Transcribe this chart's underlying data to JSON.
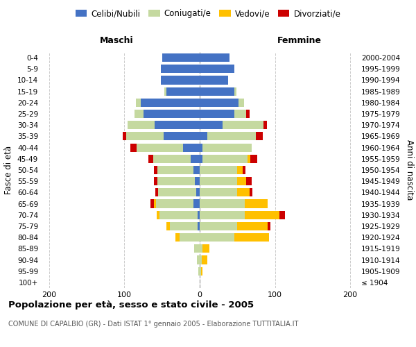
{
  "age_groups": [
    "100+",
    "95-99",
    "90-94",
    "85-89",
    "80-84",
    "75-79",
    "70-74",
    "65-69",
    "60-64",
    "55-59",
    "50-54",
    "45-49",
    "40-44",
    "35-39",
    "30-34",
    "25-29",
    "20-24",
    "15-19",
    "10-14",
    "5-9",
    "0-4"
  ],
  "birth_years": [
    "≤ 1904",
    "1905-1909",
    "1910-1914",
    "1915-1919",
    "1920-1924",
    "1925-1929",
    "1930-1934",
    "1935-1939",
    "1940-1944",
    "1945-1949",
    "1950-1954",
    "1955-1959",
    "1960-1964",
    "1965-1969",
    "1970-1974",
    "1975-1979",
    "1980-1984",
    "1985-1989",
    "1990-1994",
    "1995-1999",
    "2000-2004"
  ],
  "male_celibi": [
    0,
    0,
    0,
    0,
    0,
    3,
    3,
    8,
    5,
    6,
    8,
    12,
    22,
    48,
    60,
    75,
    78,
    44,
    52,
    52,
    50
  ],
  "male_coniugati": [
    0,
    2,
    4,
    7,
    27,
    37,
    50,
    50,
    50,
    50,
    48,
    50,
    62,
    50,
    36,
    12,
    7,
    3,
    0,
    0,
    0
  ],
  "male_vedovi": [
    0,
    0,
    0,
    0,
    5,
    4,
    4,
    3,
    0,
    0,
    0,
    0,
    0,
    0,
    0,
    0,
    0,
    0,
    0,
    0,
    0
  ],
  "male_divorziati": [
    0,
    0,
    0,
    0,
    0,
    0,
    0,
    4,
    4,
    5,
    5,
    6,
    8,
    4,
    0,
    0,
    0,
    0,
    0,
    0,
    0
  ],
  "female_nubili": [
    0,
    0,
    0,
    0,
    0,
    0,
    0,
    0,
    0,
    0,
    0,
    4,
    4,
    10,
    30,
    46,
    52,
    46,
    38,
    46,
    40
  ],
  "female_coniugate": [
    0,
    2,
    3,
    4,
    46,
    50,
    60,
    60,
    50,
    50,
    50,
    60,
    65,
    65,
    55,
    16,
    7,
    3,
    0,
    0,
    0
  ],
  "female_vedove": [
    0,
    2,
    7,
    9,
    46,
    40,
    46,
    30,
    16,
    12,
    7,
    3,
    0,
    0,
    0,
    0,
    0,
    0,
    0,
    0,
    0
  ],
  "female_divorziate": [
    0,
    0,
    0,
    0,
    0,
    4,
    7,
    0,
    4,
    7,
    4,
    9,
    0,
    9,
    4,
    4,
    0,
    0,
    0,
    0,
    0
  ],
  "colors": {
    "celibi": "#4472c4",
    "coniugati": "#c5d9a0",
    "vedovi": "#ffc000",
    "divorziati": "#cc0000"
  },
  "xlim": 210,
  "title": "Popolazione per età, sesso e stato civile - 2005",
  "subtitle": "COMUNE DI CAPALBIO (GR) - Dati ISTAT 1° gennaio 2005 - Elaborazione TUTTITALIA.IT",
  "ylabel_left": "Fasce di età",
  "ylabel_right": "Anni di nascita",
  "xlabel_left": "Maschi",
  "xlabel_right": "Femmine",
  "bg_color": "#ffffff",
  "grid_color": "#cccccc"
}
